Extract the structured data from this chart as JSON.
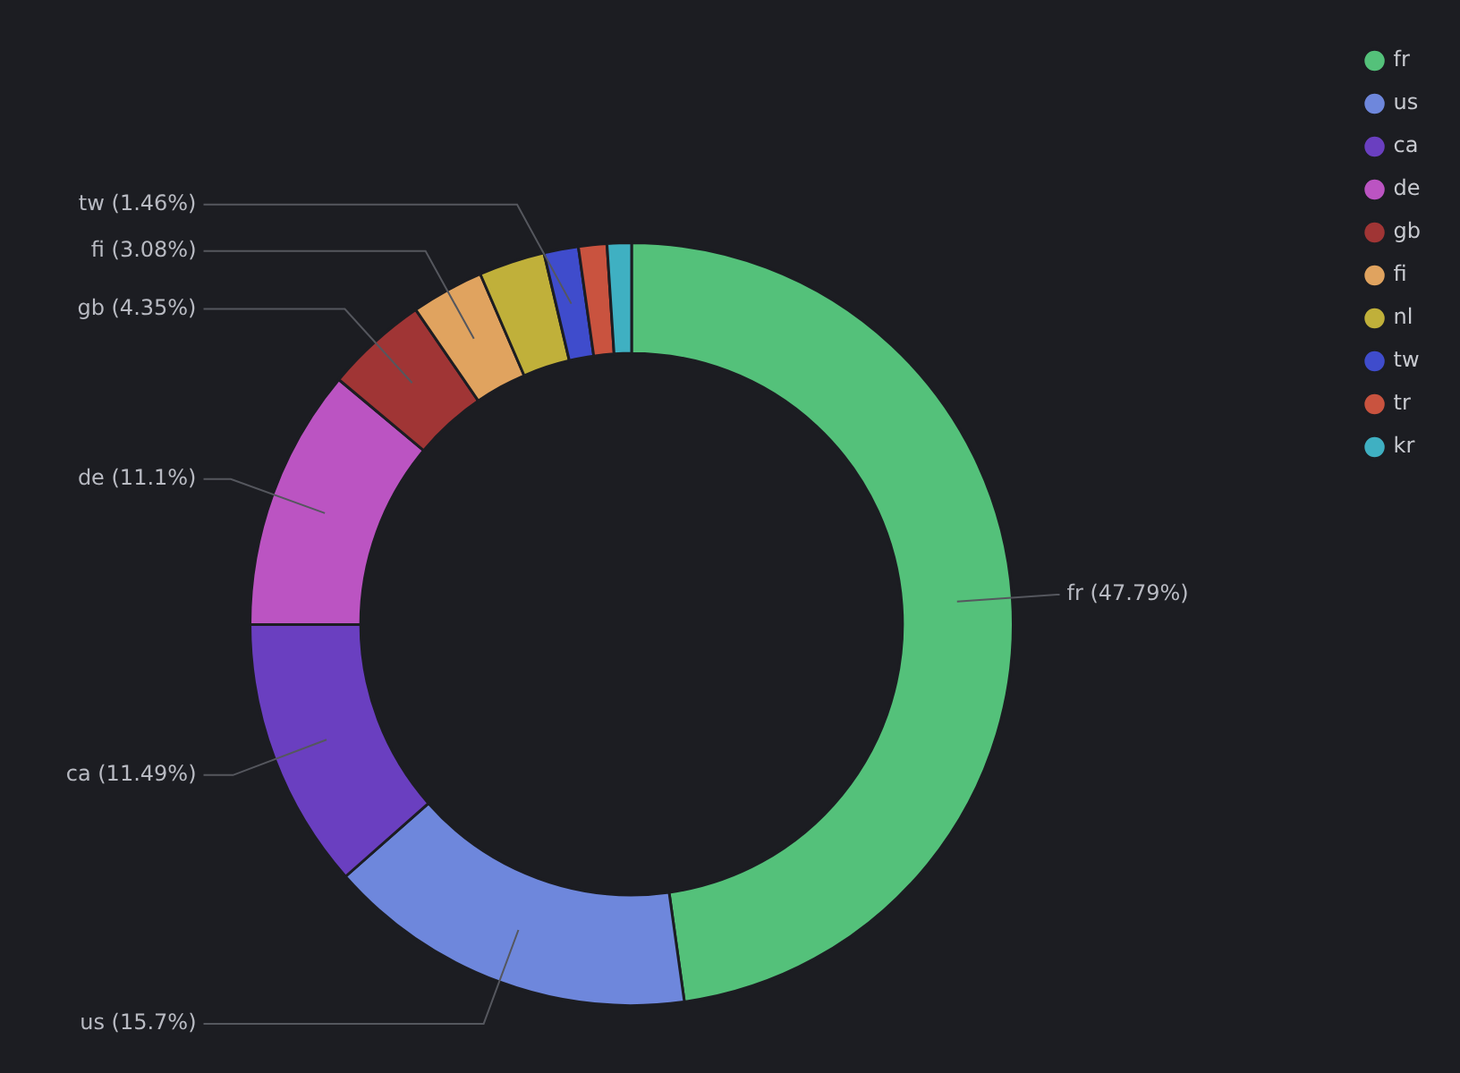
{
  "chart_data": {
    "type": "donut",
    "categories": [
      "fr",
      "us",
      "ca",
      "de",
      "gb",
      "fi",
      "nl",
      "tw",
      "tr",
      "kr"
    ],
    "values": [
      47.79,
      15.7,
      11.49,
      11.1,
      4.35,
      3.08,
      2.8,
      1.46,
      1.2,
      1.03
    ],
    "value_labels": [
      "(47.79%)",
      "(15.7%)",
      "(11.49%)",
      "(11.1%)",
      "(4.35%)",
      "(3.08%)",
      null,
      "(1.46%)",
      null,
      null
    ],
    "colors": [
      "#54c17a",
      "#6e87dc",
      "#6a3fc0",
      "#bb54c2",
      "#a03535",
      "#e0a35f",
      "#c0b03a",
      "#3f4ccc",
      "#c9533f",
      "#3fb0c2"
    ],
    "legend": "top right"
  }
}
